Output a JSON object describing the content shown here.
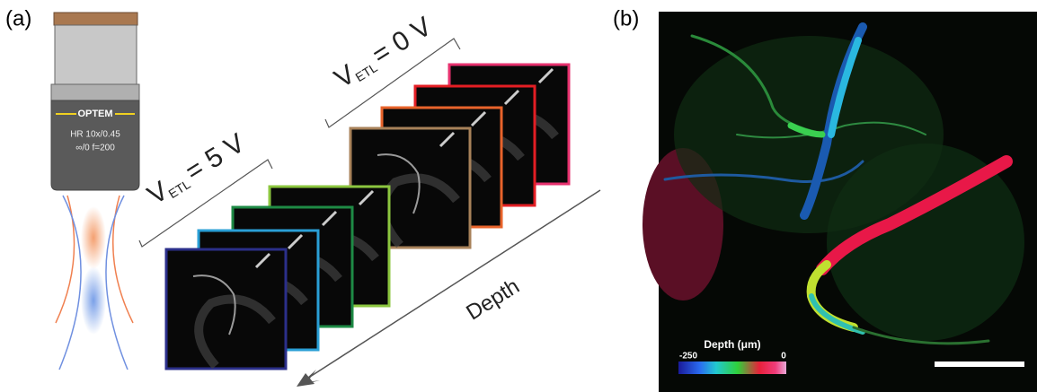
{
  "panel_a": {
    "label": "(a)",
    "objective": {
      "brand": "OPTEM",
      "spec_1": "HR 10x/0.45",
      "spec_2": "∞/0 f=200"
    },
    "voltage_labels": [
      {
        "symbol": "V",
        "subscript": "ETL",
        "value": "= 5 V"
      },
      {
        "symbol": "V",
        "subscript": "ETL",
        "value": "= 0 V"
      }
    ],
    "axis_label": "Depth"
  },
  "panel_b": {
    "label": "(b)",
    "colorbar": {
      "title": "Depth (μm)",
      "min_label": "-250",
      "max_label": "0"
    }
  }
}
